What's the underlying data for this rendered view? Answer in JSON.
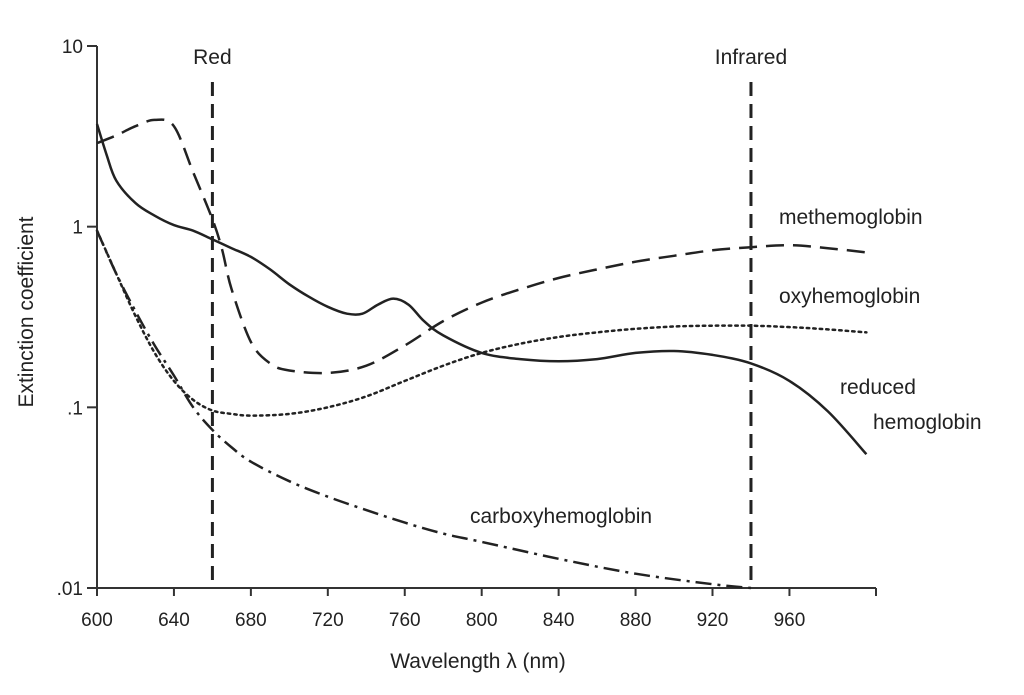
{
  "chart_data": {
    "type": "line",
    "xlabel": "Wavelength λ (nm)",
    "ylabel": "Extinction coefficient",
    "xlim": [
      600,
      1005
    ],
    "ylim": [
      0.01,
      10
    ],
    "y_scale": "log",
    "grid": false,
    "x_ticks": [
      {
        "value": 600,
        "label": "600"
      },
      {
        "value": 640,
        "label": "640"
      },
      {
        "value": 680,
        "label": "680"
      },
      {
        "value": 720,
        "label": "720"
      },
      {
        "value": 760,
        "label": "760"
      },
      {
        "value": 800,
        "label": "800"
      },
      {
        "value": 840,
        "label": "840"
      },
      {
        "value": 880,
        "label": "880"
      },
      {
        "value": 920,
        "label": "920"
      },
      {
        "value": 960,
        "label": "960"
      }
    ],
    "y_ticks": [
      {
        "value": 0.01,
        "label": ".01"
      },
      {
        "value": 0.1,
        "label": ".1"
      },
      {
        "value": 1,
        "label": "1"
      },
      {
        "value": 10,
        "label": "10"
      }
    ],
    "markers": [
      {
        "label": "Red",
        "x": 660
      },
      {
        "label": "Infrared",
        "x": 940
      }
    ],
    "series": [
      {
        "name": "methemoglobin",
        "style": "dashed",
        "x": [
          600,
          610,
          620,
          630,
          640,
          650,
          660,
          665,
          670,
          680,
          690,
          700,
          720,
          740,
          760,
          780,
          800,
          820,
          840,
          860,
          880,
          900,
          920,
          940,
          960,
          980,
          1000
        ],
        "y": [
          2.9,
          3.2,
          3.6,
          3.9,
          3.6,
          2.0,
          1.1,
          0.75,
          0.45,
          0.23,
          0.175,
          0.16,
          0.155,
          0.17,
          0.22,
          0.3,
          0.38,
          0.45,
          0.52,
          0.58,
          0.64,
          0.69,
          0.74,
          0.77,
          0.79,
          0.76,
          0.72
        ]
      },
      {
        "name": "oxyhemoglobin",
        "style": "dotted",
        "x": [
          600,
          610,
          620,
          630,
          640,
          650,
          660,
          670,
          680,
          700,
          720,
          740,
          760,
          780,
          800,
          820,
          840,
          860,
          880,
          900,
          920,
          940,
          960,
          980,
          1000
        ],
        "y": [
          0.95,
          0.55,
          0.32,
          0.2,
          0.14,
          0.11,
          0.096,
          0.092,
          0.09,
          0.092,
          0.1,
          0.115,
          0.14,
          0.17,
          0.2,
          0.225,
          0.245,
          0.26,
          0.272,
          0.28,
          0.283,
          0.283,
          0.278,
          0.27,
          0.26
        ]
      },
      {
        "name": "reduced hemoglobin",
        "style": "solid",
        "x": [
          600,
          605,
          610,
          620,
          630,
          640,
          650,
          660,
          670,
          680,
          690,
          700,
          710,
          720,
          730,
          738,
          746,
          754,
          762,
          770,
          780,
          800,
          820,
          840,
          860,
          880,
          900,
          920,
          940,
          960,
          980,
          1000
        ],
        "y": [
          3.7,
          2.5,
          1.8,
          1.35,
          1.15,
          1.02,
          0.95,
          0.85,
          0.76,
          0.68,
          0.58,
          0.48,
          0.41,
          0.36,
          0.33,
          0.33,
          0.37,
          0.4,
          0.37,
          0.3,
          0.25,
          0.2,
          0.185,
          0.18,
          0.185,
          0.2,
          0.205,
          0.195,
          0.175,
          0.14,
          0.095,
          0.055
        ]
      },
      {
        "name": "carboxyhemoglobin",
        "style": "dashdot",
        "x": [
          600,
          610,
          620,
          630,
          640,
          650,
          660,
          670,
          680,
          700,
          720,
          740,
          760,
          780,
          800,
          840,
          880,
          920,
          940
        ],
        "y": [
          0.95,
          0.55,
          0.34,
          0.22,
          0.15,
          0.1,
          0.075,
          0.06,
          0.05,
          0.039,
          0.032,
          0.027,
          0.023,
          0.02,
          0.018,
          0.0145,
          0.012,
          0.0105,
          0.01
        ]
      }
    ],
    "annotations": [
      {
        "id": "methemoglobin",
        "text": "methemoglobin"
      },
      {
        "id": "oxyhemoglobin",
        "text": "oxyhemoglobin"
      },
      {
        "id": "reduced1",
        "text": "reduced"
      },
      {
        "id": "reduced2",
        "text": "hemoglobin"
      },
      {
        "id": "carboxyhemoglobin",
        "text": "carboxyhemoglobin"
      }
    ]
  },
  "colors": {
    "line": "#222222",
    "axis": "#333333",
    "background": "#ffffff"
  }
}
